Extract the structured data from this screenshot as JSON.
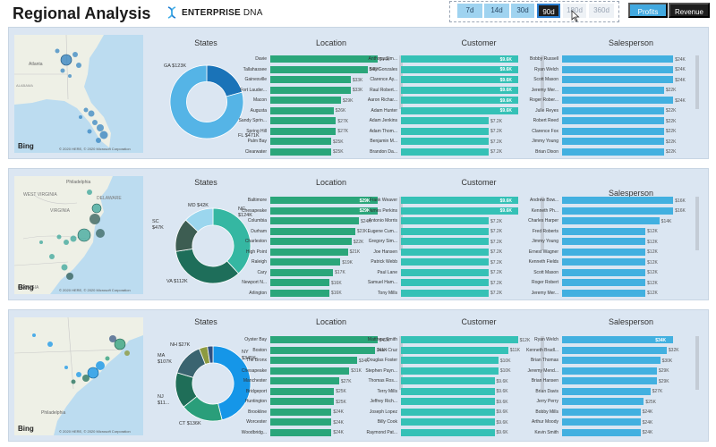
{
  "header": {
    "title": "Regional Analysis",
    "logo": {
      "brand": "ENTERPRISE",
      "suffix": "DNA",
      "icon": "dna-helix-icon"
    },
    "ranges": [
      "7d",
      "14d",
      "30d",
      "90d",
      "180d",
      "360d"
    ],
    "active_range": "90d",
    "metrics": [
      "Profits",
      "Revenue"
    ],
    "active_metric": "Revenue"
  },
  "colors": {
    "panel_bg": "#dbe6f2",
    "location_bar": "#2aa67a",
    "customer_bar": "#35c1b6",
    "salesperson_bar": "#42b0e0"
  },
  "panels": [
    {
      "map": {
        "logo": "Bing",
        "copyright": "© 2020 HERE, © 2020 Microsoft Corporation",
        "places": [
          "Atlanta",
          "ALABAMA"
        ]
      },
      "states": {
        "title": "States",
        "slices": [
          {
            "label": "GA $123K",
            "value": 123,
            "color": "#1a73b8"
          },
          {
            "label": "FL $471K",
            "value": 471,
            "color": "#55b4e6"
          }
        ]
      },
      "location": {
        "title": "Location",
        "rows": [
          {
            "label": "Davie",
            "value": 44,
            "text": "$44K"
          },
          {
            "label": "Tallahassee",
            "value": 40,
            "text": "$40K"
          },
          {
            "label": "Gainesville",
            "value": 33,
            "text": "$33K"
          },
          {
            "label": "Fort Lauder...",
            "value": 33,
            "text": "$33K"
          },
          {
            "label": "Macon",
            "value": 29,
            "text": "$29K"
          },
          {
            "label": "Augusta",
            "value": 26,
            "text": "$26K"
          },
          {
            "label": "Sandy Sprin...",
            "value": 27,
            "text": "$27K"
          },
          {
            "label": "Spring Hill",
            "value": 27,
            "text": "$27K"
          },
          {
            "label": "Palm Bay",
            "value": 25,
            "text": "$25K"
          },
          {
            "label": "Clearwater",
            "value": 25,
            "text": "$25K"
          }
        ]
      },
      "customer": {
        "title": "Customer",
        "rows": [
          {
            "label": "Anthony Sim...",
            "value": 9.6,
            "text": "$9.6K"
          },
          {
            "label": "Billy Gonzales",
            "value": 9.6,
            "text": "$9.6K"
          },
          {
            "label": "Clarence Ay...",
            "value": 9.6,
            "text": "$9.6K"
          },
          {
            "label": "Raul Robert...",
            "value": 9.6,
            "text": "$9.6K"
          },
          {
            "label": "Aaron Richar...",
            "value": 9.6,
            "text": "$9.6K"
          },
          {
            "label": "Adam Hunter",
            "value": 9.6,
            "text": "$9.6K"
          },
          {
            "label": "Adam Jenkins",
            "value": 7.2,
            "text": "$7.2K"
          },
          {
            "label": "Adam Thom...",
            "value": 7.2,
            "text": "$7.2K"
          },
          {
            "label": "Benjamin M...",
            "value": 7.2,
            "text": "$7.2K"
          },
          {
            "label": "Brandon Da...",
            "value": 7.2,
            "text": "$7.2K"
          }
        ]
      },
      "salesperson": {
        "title": "Salesperson",
        "rows": [
          {
            "label": "Bobby Russell",
            "value": 24,
            "text": "$24K"
          },
          {
            "label": "Ryan Welch",
            "value": 24,
            "text": "$24K"
          },
          {
            "label": "Scott Mason",
            "value": 24,
            "text": "$24K"
          },
          {
            "label": "Jeremy Mer...",
            "value": 22,
            "text": "$22K"
          },
          {
            "label": "Roger Rober...",
            "value": 24,
            "text": "$24K"
          },
          {
            "label": "Julie Reyes",
            "value": 22,
            "text": "$22K"
          },
          {
            "label": "Robert Reed",
            "value": 22,
            "text": "$22K"
          },
          {
            "label": "Clarence Fox",
            "value": 22,
            "text": "$22K"
          },
          {
            "label": "Jimmy Young",
            "value": 22,
            "text": "$22K"
          },
          {
            "label": "Brian Dixon",
            "value": 22,
            "text": "$22K"
          }
        ]
      }
    },
    {
      "map": {
        "logo": "Bing",
        "copyright": "© 2020 HERE, © 2020 Microsoft Corporation",
        "places": [
          "Philadelphia",
          "WEST VIRGINIA",
          "VIRGINIA",
          "DELAWARE",
          "GEORGIA"
        ]
      },
      "states": {
        "title": "States",
        "slices": [
          {
            "label": "NC $124K",
            "value": 124,
            "color": "#35b7a2"
          },
          {
            "label": "VA $112K",
            "value": 112,
            "color": "#1e6e5a"
          },
          {
            "label": "SC $47K",
            "value": 47,
            "color": "#3d5d52"
          },
          {
            "label": "MD $42K",
            "value": 42,
            "color": "#9bd6ee"
          }
        ]
      },
      "location": {
        "title": "Location",
        "rows": [
          {
            "label": "Baltimore",
            "value": 29,
            "text": "$29K"
          },
          {
            "label": "Chesapeake",
            "value": 29,
            "text": "$29K"
          },
          {
            "label": "Columbia",
            "value": 24,
            "text": "$24K"
          },
          {
            "label": "Durham",
            "value": 23,
            "text": "$23K"
          },
          {
            "label": "Charleston",
            "value": 22,
            "text": "$22K"
          },
          {
            "label": "High Point",
            "value": 21,
            "text": "$21K"
          },
          {
            "label": "Raleigh",
            "value": 19,
            "text": "$19K"
          },
          {
            "label": "Cary",
            "value": 17,
            "text": "$17K"
          },
          {
            "label": "Newport N...",
            "value": 16,
            "text": "$16K"
          },
          {
            "label": "Arlington",
            "value": 16,
            "text": "$16K"
          }
        ]
      },
      "customer": {
        "title": "Customer",
        "rows": [
          {
            "label": "Frank Weaver",
            "value": 9.6,
            "text": "$9.6K"
          },
          {
            "label": "James Perkins",
            "value": 9.6,
            "text": "$9.6K"
          },
          {
            "label": "Antonio Morris",
            "value": 7.2,
            "text": "$7.2K"
          },
          {
            "label": "Eugene Cum...",
            "value": 7.2,
            "text": "$7.2K"
          },
          {
            "label": "Gregory Sim...",
            "value": 7.2,
            "text": "$7.2K"
          },
          {
            "label": "Joe Hansen",
            "value": 7.2,
            "text": "$7.2K"
          },
          {
            "label": "Patrick Webb",
            "value": 7.2,
            "text": "$7.2K"
          },
          {
            "label": "Paul Lane",
            "value": 7.2,
            "text": "$7.2K"
          },
          {
            "label": "Samuel Ham...",
            "value": 7.2,
            "text": "$7.2K"
          },
          {
            "label": "Tony Mills",
            "value": 7.2,
            "text": "$7.2K"
          }
        ]
      },
      "salesperson": {
        "title": "Salesperson",
        "rows": [
          {
            "label": "Andrew Bow...",
            "value": 16,
            "text": "$16K"
          },
          {
            "label": "Kenneth Ph...",
            "value": 16,
            "text": "$16K"
          },
          {
            "label": "Charles Harper",
            "value": 14,
            "text": "$14K"
          },
          {
            "label": "Fred Roberts",
            "value": 12,
            "text": "$12K"
          },
          {
            "label": "Jimmy Young",
            "value": 12,
            "text": "$12K"
          },
          {
            "label": "Ernest Wagner",
            "value": 12,
            "text": "$12K"
          },
          {
            "label": "Kenneth Fields",
            "value": 12,
            "text": "$12K"
          },
          {
            "label": "Scott Mason",
            "value": 12,
            "text": "$12K"
          },
          {
            "label": "Roger Robert",
            "value": 12,
            "text": "$12K"
          },
          {
            "label": "Jeremy Mer...",
            "value": 12,
            "text": "$12K"
          }
        ]
      }
    },
    {
      "map": {
        "logo": "Bing",
        "copyright": "© 2020 HERE, © 2020 Microsoft Corporation",
        "places": [
          "Philadelphia"
        ]
      },
      "states": {
        "title": "States",
        "slices": [
          {
            "label": "NY $345K",
            "value": 345,
            "color": "#1596e8"
          },
          {
            "label": "CT $136K",
            "value": 136,
            "color": "#2a9e7a"
          },
          {
            "label": "NJ $11...",
            "value": 115,
            "color": "#1f6e58"
          },
          {
            "label": "MA $107K",
            "value": 107,
            "color": "#3a6470"
          },
          {
            "label": "NH $27K",
            "value": 27,
            "color": "#8c9a40"
          },
          {
            "label": "",
            "value": 18,
            "color": "#2f4f7f"
          }
        ]
      },
      "location": {
        "title": "Location",
        "rows": [
          {
            "label": "Oyster Bay",
            "value": 42,
            "text": "$42K"
          },
          {
            "label": "Boston",
            "value": 41,
            "text": "$41K"
          },
          {
            "label": "The Bronx",
            "value": 34,
            "text": "$34K"
          },
          {
            "label": "Chesapeake",
            "value": 31,
            "text": "$31K"
          },
          {
            "label": "Manchester",
            "value": 27,
            "text": "$27K"
          },
          {
            "label": "Bridgeport",
            "value": 25,
            "text": "$25K"
          },
          {
            "label": "Huntington",
            "value": 25,
            "text": "$25K"
          },
          {
            "label": "Brookline",
            "value": 24,
            "text": "$24K"
          },
          {
            "label": "Worcester",
            "value": 24,
            "text": "$24K"
          },
          {
            "label": "Woodbridg...",
            "value": 24,
            "text": "$24K"
          }
        ]
      },
      "customer": {
        "title": "Customer",
        "rows": [
          {
            "label": "Matthew Smith",
            "value": 12,
            "text": "$12K"
          },
          {
            "label": "Juan Cruz",
            "value": 11,
            "text": "$11K"
          },
          {
            "label": "Douglas Foster",
            "value": 10,
            "text": "$10K"
          },
          {
            "label": "Stephen Payn...",
            "value": 10,
            "text": "$10K"
          },
          {
            "label": "Thomas Ros...",
            "value": 9.6,
            "text": "$9.6K"
          },
          {
            "label": "Terry Mills",
            "value": 9.6,
            "text": "$9.6K"
          },
          {
            "label": "Jeffrey Rich...",
            "value": 9.6,
            "text": "$9.6K"
          },
          {
            "label": "Joseph Lopez",
            "value": 9.6,
            "text": "$9.6K"
          },
          {
            "label": "Billy Cook",
            "value": 9.6,
            "text": "$9.6K"
          },
          {
            "label": "Raymond Pat...",
            "value": 9.6,
            "text": "$9.6K"
          }
        ]
      },
      "salesperson": {
        "title": "Salesperson",
        "rows": [
          {
            "label": "Ryan Welch",
            "value": 34,
            "text": "$34K"
          },
          {
            "label": "Kenneth Bradl...",
            "value": 32,
            "text": "$32K"
          },
          {
            "label": "Brian Thomas",
            "value": 30,
            "text": "$30K"
          },
          {
            "label": "Jeremy Mend...",
            "value": 29,
            "text": "$29K"
          },
          {
            "label": "Brian Hansen",
            "value": 29,
            "text": "$29K"
          },
          {
            "label": "Brian Davis",
            "value": 27,
            "text": "$27K"
          },
          {
            "label": "Jerry Perry",
            "value": 25,
            "text": "$25K"
          },
          {
            "label": "Bobby Mills",
            "value": 24,
            "text": "$24K"
          },
          {
            "label": "Arthur Moody",
            "value": 24,
            "text": "$24K"
          },
          {
            "label": "Kevin Smith",
            "value": 24,
            "text": "$24K"
          }
        ]
      }
    }
  ]
}
